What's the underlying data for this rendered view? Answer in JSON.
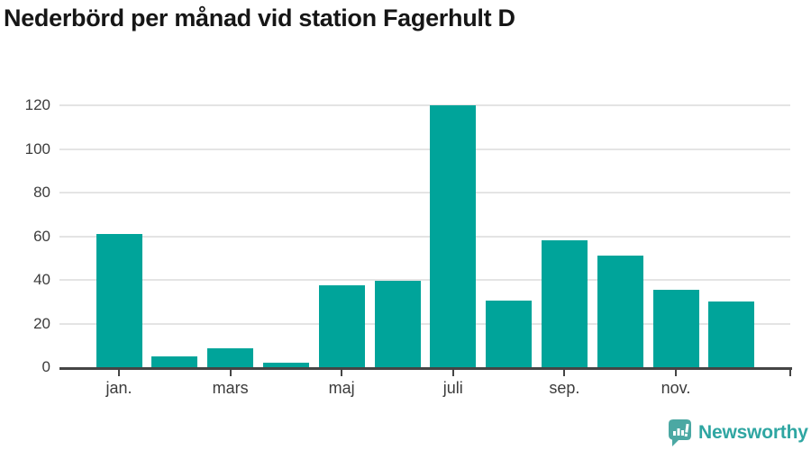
{
  "title": "Nederbörd per månad vid station Fagerhult D",
  "chart_data": {
    "type": "bar",
    "title": "Nederbörd per månad vid station Fagerhult D",
    "categories": [
      "jan.",
      "",
      "mars",
      "",
      "maj",
      "",
      "juli",
      "",
      "sep.",
      "",
      "nov.",
      ""
    ],
    "values": [
      61,
      5,
      8.5,
      2,
      37.5,
      39.5,
      120,
      30.5,
      58,
      51,
      35.5,
      30
    ],
    "x_tick_labels": [
      "jan.",
      "mars",
      "maj",
      "juli",
      "sep.",
      "nov."
    ],
    "yticks": [
      0,
      20,
      40,
      60,
      80,
      100,
      120
    ],
    "ylim": [
      0,
      120
    ],
    "xlabel": "",
    "ylabel": "",
    "grid": true,
    "legend": false,
    "bar_color": "#00a49a",
    "gridline_color": "#e4e4e4",
    "axis_color": "#454545"
  },
  "branding": {
    "logo_text": "Newsworthy",
    "logo_text_color": "#2fa6a2",
    "logo_icon_color": "#4ba8a3"
  }
}
